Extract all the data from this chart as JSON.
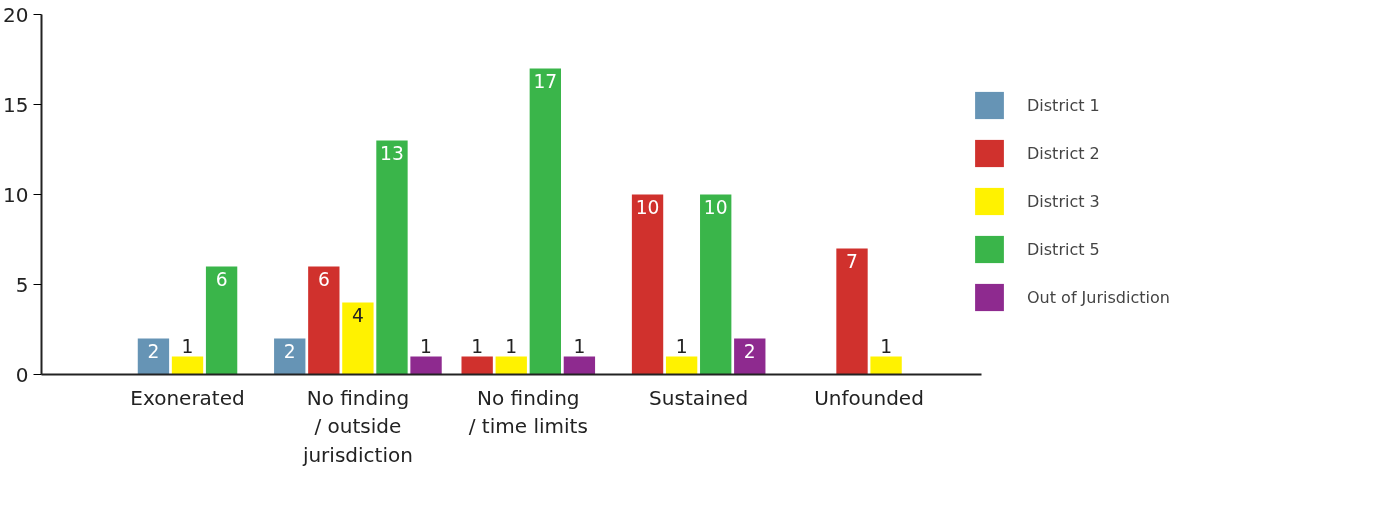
{
  "chart_data": {
    "type": "bar",
    "categories": [
      "Exonerated",
      "No finding\n/ outside\njurisdiction",
      "No finding\n/ time limits",
      "Sustained",
      "Unfounded"
    ],
    "series": [
      {
        "name": "District 1",
        "color": "#6694b5",
        "values": [
          2,
          2,
          null,
          null,
          null
        ]
      },
      {
        "name": "District 2",
        "color": "#d0312d",
        "values": [
          null,
          6,
          1,
          10,
          7
        ]
      },
      {
        "name": "District 3",
        "color": "#fff200",
        "values": [
          1,
          4,
          1,
          1,
          1
        ]
      },
      {
        "name": "District 5",
        "color": "#3ab54a",
        "values": [
          6,
          13,
          17,
          10,
          null
        ]
      },
      {
        "name": "Out of Jurisdiction",
        "color": "#8e2a8f",
        "values": [
          null,
          1,
          1,
          2,
          null
        ]
      }
    ],
    "ylim": [
      0,
      20
    ],
    "yticks": [
      0,
      5,
      10,
      15,
      20
    ],
    "grid": false,
    "legend": "right",
    "data_labels": true
  }
}
